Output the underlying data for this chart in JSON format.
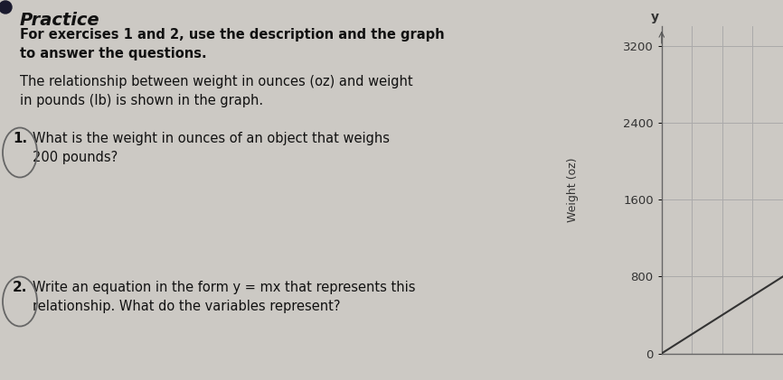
{
  "background_color": "#ccc9c4",
  "title_text": "Practice",
  "header_bold": "For exercises 1 and 2, use the description and the graph\nto answer the questions.",
  "description": "The relationship between weight in ounces (oz) and weight\nin pounds (lb) is shown in the graph.",
  "q1_num": "1.",
  "q1_text": "What is the weight in ounces of an object that weighs\n200 pounds?",
  "q2_num": "2.",
  "q2_text": "Write an equation in the form y = mx that represents this\nrelationship. What do the variables represent?",
  "yticks": [
    0,
    800,
    1600,
    2400,
    3200
  ],
  "ylabel": "Weight (oz)",
  "y_axis_label": "y",
  "grid_color": "#aaaaaa",
  "line_color": "#333333",
  "text_dark": "#111111",
  "spine_color": "#666666",
  "num_x_grid": 4,
  "xlim": [
    0,
    50
  ],
  "ylim": [
    0,
    3400
  ],
  "line_x": [
    0,
    50
  ],
  "line_y": [
    0,
    800
  ]
}
